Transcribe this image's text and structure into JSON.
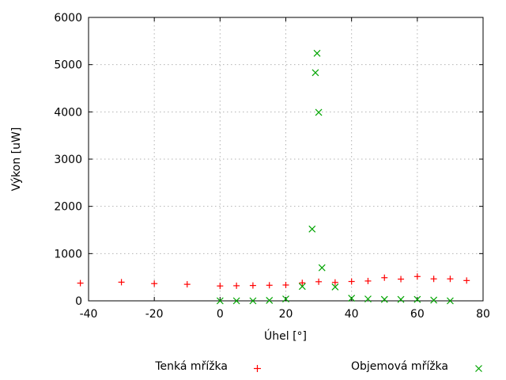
{
  "chart_data": {
    "type": "scatter",
    "title": "",
    "xlabel": "Úhel [°]",
    "ylabel": "Výkon [uW]",
    "xlim": [
      -40,
      80
    ],
    "ylim": [
      0,
      6000
    ],
    "xticks": [
      -40,
      -20,
      0,
      20,
      40,
      60,
      80
    ],
    "yticks": [
      0,
      1000,
      2000,
      3000,
      4000,
      5000,
      6000
    ],
    "grid": true,
    "legend_position": "below",
    "colors": {
      "grid": "#b2b2b2",
      "axis": "#000000",
      "series1": "#ff0000",
      "series2": "#00a400"
    },
    "series": [
      {
        "name": "Tenká mřížka",
        "marker": "plus",
        "color": "#ff0000",
        "points": [
          [
            -42.5,
            375
          ],
          [
            -30,
            395
          ],
          [
            -20,
            365
          ],
          [
            -10,
            350
          ],
          [
            0,
            315
          ],
          [
            5,
            320
          ],
          [
            10,
            325
          ],
          [
            15,
            330
          ],
          [
            20,
            335
          ],
          [
            25,
            380
          ],
          [
            30,
            405
          ],
          [
            35,
            390
          ],
          [
            40,
            410
          ],
          [
            45,
            420
          ],
          [
            50,
            490
          ],
          [
            55,
            460
          ],
          [
            60,
            515
          ],
          [
            65,
            465
          ],
          [
            70,
            465
          ],
          [
            75,
            430
          ]
        ]
      },
      {
        "name": "Objemová mřížka",
        "marker": "cross",
        "color": "#00a400",
        "points": [
          [
            0,
            0
          ],
          [
            5,
            0
          ],
          [
            10,
            0
          ],
          [
            15,
            10
          ],
          [
            20,
            40
          ],
          [
            25,
            305
          ],
          [
            28,
            1520
          ],
          [
            29,
            4830
          ],
          [
            29.5,
            5240
          ],
          [
            30,
            3990
          ],
          [
            31,
            700
          ],
          [
            35,
            295
          ],
          [
            40,
            55
          ],
          [
            45,
            40
          ],
          [
            50,
            30
          ],
          [
            55,
            30
          ],
          [
            60,
            30
          ],
          [
            65,
            15
          ],
          [
            70,
            0
          ]
        ]
      }
    ]
  }
}
